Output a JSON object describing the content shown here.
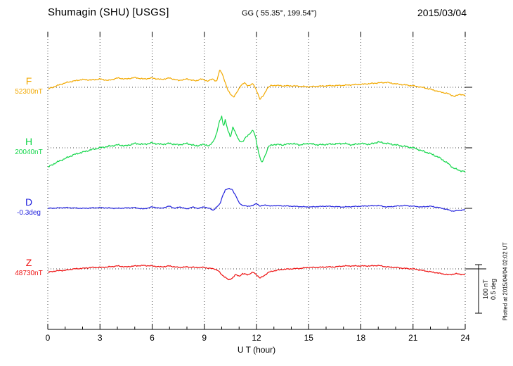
{
  "header": {
    "title": "Shumagin (SHU)  [USGS]",
    "coords": "GG ( 55.35°, 199.54°)",
    "date": "2015/03/04"
  },
  "axis": {
    "xlabel": "U T (hour)",
    "ticks": [
      "0",
      "3",
      "6",
      "9",
      "12",
      "15",
      "18",
      "21",
      "24"
    ]
  },
  "scalebar": {
    "nt": "100 nT",
    "deg": "0.5 deg"
  },
  "plotted_note": "Plotted at 2015/04/04 02:02 UT",
  "channels": [
    {
      "id": "F",
      "label": "F",
      "value": "52300nT",
      "color": "#f2a900"
    },
    {
      "id": "H",
      "label": "H",
      "value": "20040nT",
      "color": "#13d64a"
    },
    {
      "id": "D",
      "label": "D",
      "value": "-0.3deg",
      "color": "#2222dd"
    },
    {
      "id": "Z",
      "label": "Z",
      "value": "48730nT",
      "color": "#ee1111"
    }
  ],
  "chart_data": {
    "type": "line",
    "title": "Shumagin (SHU) [USGS] magnetogram",
    "subtitle": "GG ( 55.35°, 199.54°)",
    "date": "2015/03/04",
    "xlabel": "U T (hour)",
    "x_range": [
      0,
      24
    ],
    "x_tick_step": 3,
    "grid": "dotted vertical every 3h, dotted horizontal at each channel baseline",
    "legend_position": "left channel labels",
    "scale": {
      "nT_per_div": 100,
      "deg_per_div": 0.5
    },
    "series": [
      {
        "name": "F",
        "baseline": 52300,
        "unit": "nT",
        "color": "#f2a900",
        "points": [
          [
            0,
            -4
          ],
          [
            0.5,
            3
          ],
          [
            1,
            9
          ],
          [
            1.5,
            13
          ],
          [
            2,
            16
          ],
          [
            2.5,
            15
          ],
          [
            3,
            17
          ],
          [
            3.5,
            14
          ],
          [
            4,
            19
          ],
          [
            4.5,
            17
          ],
          [
            5,
            20
          ],
          [
            5.5,
            17
          ],
          [
            6,
            19
          ],
          [
            6.5,
            16
          ],
          [
            7,
            19
          ],
          [
            7.5,
            14
          ],
          [
            8,
            17
          ],
          [
            8.5,
            13
          ],
          [
            8.8,
            17
          ],
          [
            9.2,
            13
          ],
          [
            9.5,
            17
          ],
          [
            9.7,
            12
          ],
          [
            9.9,
            36
          ],
          [
            10.05,
            26
          ],
          [
            10.2,
            10
          ],
          [
            10.35,
            -6
          ],
          [
            10.5,
            -14
          ],
          [
            10.7,
            -20
          ],
          [
            10.9,
            -9
          ],
          [
            11.1,
            4
          ],
          [
            11.3,
            9
          ],
          [
            11.5,
            3
          ],
          [
            11.8,
            7
          ],
          [
            12,
            -6
          ],
          [
            12.2,
            -25
          ],
          [
            12.4,
            -17
          ],
          [
            12.6,
            -3
          ],
          [
            12.8,
            3
          ],
          [
            13,
            4
          ],
          [
            13.5,
            3
          ],
          [
            14,
            3
          ],
          [
            15,
            1
          ],
          [
            16,
            3
          ],
          [
            17,
            4
          ],
          [
            18,
            6
          ],
          [
            19,
            9
          ],
          [
            19.5,
            10
          ],
          [
            20,
            7
          ],
          [
            21,
            3
          ],
          [
            21.5,
            0
          ],
          [
            22,
            -4
          ],
          [
            22.5,
            -9
          ],
          [
            23,
            -13
          ],
          [
            23.4,
            -19
          ],
          [
            23.7,
            -14
          ],
          [
            24,
            -17
          ]
        ]
      },
      {
        "name": "H",
        "baseline": 20040,
        "unit": "nT",
        "color": "#13d64a",
        "points": [
          [
            0,
            -40
          ],
          [
            0.5,
            -30
          ],
          [
            1,
            -22
          ],
          [
            1.5,
            -14
          ],
          [
            2,
            -9
          ],
          [
            2.5,
            -4
          ],
          [
            3,
            0
          ],
          [
            3.5,
            3
          ],
          [
            4,
            6
          ],
          [
            4.5,
            4
          ],
          [
            5,
            9
          ],
          [
            5.5,
            7
          ],
          [
            6,
            10
          ],
          [
            6.5,
            7
          ],
          [
            7,
            9
          ],
          [
            7.5,
            6
          ],
          [
            8,
            9
          ],
          [
            8.5,
            4
          ],
          [
            9,
            7
          ],
          [
            9.3,
            4
          ],
          [
            9.5,
            12
          ],
          [
            9.7,
            29
          ],
          [
            9.85,
            51
          ],
          [
            10,
            65
          ],
          [
            10.1,
            44
          ],
          [
            10.2,
            58
          ],
          [
            10.35,
            36
          ],
          [
            10.5,
            22
          ],
          [
            10.65,
            44
          ],
          [
            10.8,
            29
          ],
          [
            11,
            15
          ],
          [
            11.2,
            12
          ],
          [
            11.4,
            22
          ],
          [
            11.6,
            29
          ],
          [
            11.8,
            36
          ],
          [
            11.95,
            22
          ],
          [
            12.1,
            -7
          ],
          [
            12.3,
            -32
          ],
          [
            12.5,
            -15
          ],
          [
            12.7,
            3
          ],
          [
            13,
            7
          ],
          [
            13.5,
            6
          ],
          [
            14,
            9
          ],
          [
            14.5,
            6
          ],
          [
            15,
            9
          ],
          [
            15.5,
            6
          ],
          [
            16,
            7
          ],
          [
            17,
            9
          ],
          [
            17.5,
            6
          ],
          [
            18,
            9
          ],
          [
            18.5,
            7
          ],
          [
            19,
            12
          ],
          [
            19.5,
            9
          ],
          [
            20,
            6
          ],
          [
            20.5,
            3
          ],
          [
            21,
            0
          ],
          [
            21.5,
            -6
          ],
          [
            22,
            -12
          ],
          [
            22.5,
            -20
          ],
          [
            23,
            -32
          ],
          [
            23.3,
            -41
          ],
          [
            23.6,
            -46
          ],
          [
            24,
            -49
          ]
        ]
      },
      {
        "name": "D",
        "baseline": -0.3,
        "unit": "deg",
        "color": "#2222dd",
        "points": [
          [
            0,
            0
          ],
          [
            1,
            0.007
          ],
          [
            2,
            0
          ],
          [
            3,
            0.007
          ],
          [
            4,
            0
          ],
          [
            5,
            0.007
          ],
          [
            5.5,
            -0.007
          ],
          [
            6,
            0.014
          ],
          [
            6.5,
            0
          ],
          [
            7,
            0.022
          ],
          [
            7.3,
            0
          ],
          [
            7.6,
            0.014
          ],
          [
            8,
            -0.007
          ],
          [
            8.3,
            0.014
          ],
          [
            8.6,
            0
          ],
          [
            9,
            0.014
          ],
          [
            9.3,
            0
          ],
          [
            9.5,
            -0.022
          ],
          [
            9.7,
            0.014
          ],
          [
            9.9,
            0.043
          ],
          [
            10.05,
            0.13
          ],
          [
            10.2,
            0.188
          ],
          [
            10.4,
            0.203
          ],
          [
            10.6,
            0.196
          ],
          [
            10.8,
            0.13
          ],
          [
            11,
            0.058
          ],
          [
            11.2,
            0.029
          ],
          [
            11.5,
            0.022
          ],
          [
            11.8,
            0.029
          ],
          [
            12,
            0.051
          ],
          [
            12.2,
            0.022
          ],
          [
            12.5,
            0.036
          ],
          [
            12.8,
            0.022
          ],
          [
            13,
            0.029
          ],
          [
            14,
            0.022
          ],
          [
            15,
            0.014
          ],
          [
            16,
            0.022
          ],
          [
            17,
            0.014
          ],
          [
            18,
            0.022
          ],
          [
            19,
            0.029
          ],
          [
            19.5,
            0.014
          ],
          [
            20,
            0.022
          ],
          [
            20.5,
            0.029
          ],
          [
            21,
            0.022
          ],
          [
            21.5,
            0.014
          ],
          [
            22,
            0.022
          ],
          [
            22.5,
            0.007
          ],
          [
            23,
            -0.014
          ],
          [
            23.3,
            -0.029
          ],
          [
            23.6,
            -0.022
          ],
          [
            24,
            -0.014
          ]
        ]
      },
      {
        "name": "Z",
        "baseline": 48730,
        "unit": "nT",
        "color": "#ee1111",
        "points": [
          [
            0,
            -7
          ],
          [
            0.5,
            -4
          ],
          [
            1,
            -3
          ],
          [
            1.5,
            0
          ],
          [
            2,
            1
          ],
          [
            2.5,
            3
          ],
          [
            3,
            3
          ],
          [
            3.5,
            4
          ],
          [
            4,
            6
          ],
          [
            4.5,
            4
          ],
          [
            5,
            6
          ],
          [
            5.5,
            7
          ],
          [
            6,
            6
          ],
          [
            6.5,
            4
          ],
          [
            7,
            6
          ],
          [
            7.5,
            3
          ],
          [
            8,
            4
          ],
          [
            8.5,
            3
          ],
          [
            9,
            3
          ],
          [
            9.3,
            1
          ],
          [
            9.6,
            0
          ],
          [
            9.8,
            -4
          ],
          [
            10,
            -12
          ],
          [
            10.2,
            -17
          ],
          [
            10.4,
            -23
          ],
          [
            10.6,
            -19
          ],
          [
            10.8,
            -12
          ],
          [
            11,
            -15
          ],
          [
            11.2,
            -10
          ],
          [
            11.5,
            -12
          ],
          [
            11.8,
            -7
          ],
          [
            12,
            -12
          ],
          [
            12.2,
            -19
          ],
          [
            12.4,
            -15
          ],
          [
            12.7,
            -7
          ],
          [
            13,
            -4
          ],
          [
            13.5,
            -1
          ],
          [
            14,
            0
          ],
          [
            14.5,
            1
          ],
          [
            15,
            3
          ],
          [
            15.5,
            3
          ],
          [
            16,
            4
          ],
          [
            16.5,
            4
          ],
          [
            17,
            6
          ],
          [
            17.5,
            6
          ],
          [
            18,
            6
          ],
          [
            18.5,
            6
          ],
          [
            19,
            7
          ],
          [
            19.5,
            4
          ],
          [
            20,
            3
          ],
          [
            20.5,
            1
          ],
          [
            21,
            0
          ],
          [
            21.5,
            -3
          ],
          [
            22,
            -6
          ],
          [
            22.5,
            -9
          ],
          [
            23,
            -12
          ],
          [
            23.5,
            -10
          ],
          [
            24,
            -12
          ]
        ]
      }
    ]
  }
}
